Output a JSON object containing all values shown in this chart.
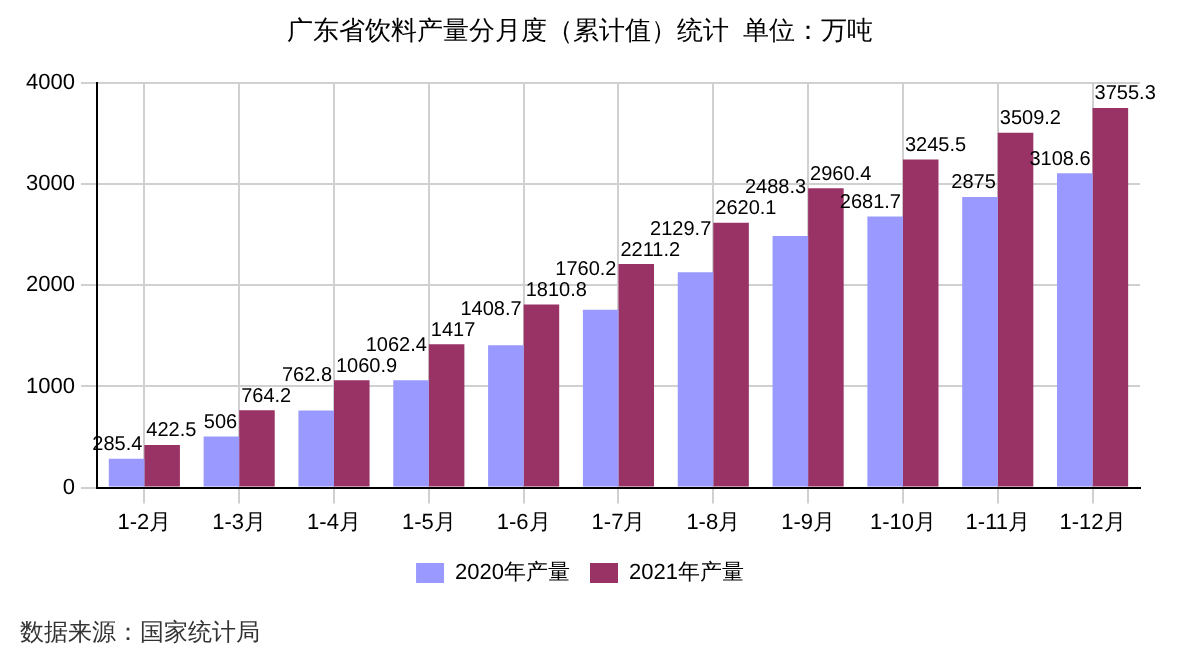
{
  "chart_data": {
    "type": "bar",
    "title": "广东省饮料产量分月度（累计值）统计  单位：万吨",
    "categories": [
      "1-2月",
      "1-3月",
      "1-4月",
      "1-5月",
      "1-6月",
      "1-7月",
      "1-8月",
      "1-9月",
      "1-10月",
      "1-11月",
      "1-12月"
    ],
    "series": [
      {
        "name": "2020年产量",
        "color": "#9999ff",
        "values": [
          285.4,
          506,
          762.8,
          1062.4,
          1408.7,
          1760.2,
          2129.7,
          2488.3,
          2681.7,
          2875,
          3108.6
        ]
      },
      {
        "name": "2021年产量",
        "color": "#993366",
        "values": [
          422.5,
          764.2,
          1060.9,
          1417,
          1810.8,
          2211.2,
          2620.1,
          2960.4,
          3245.5,
          3509.2,
          3755.3
        ]
      }
    ],
    "ylim": [
      0,
      4000
    ],
    "yticks": [
      0,
      1000,
      2000,
      3000,
      4000
    ],
    "grid": true,
    "legend": "bottom",
    "data_labels": true,
    "annotations": [
      "数据来源：国家统计局"
    ]
  }
}
